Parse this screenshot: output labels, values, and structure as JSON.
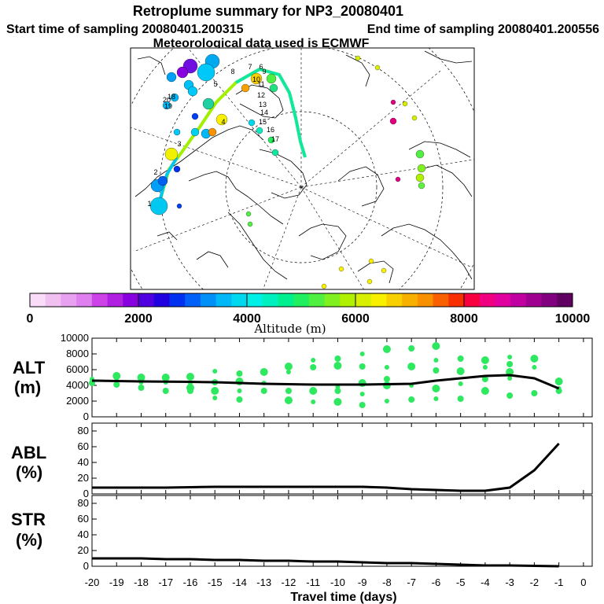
{
  "titles": {
    "main": "Retroplume summary for NP3_20080401",
    "start": "Start time of sampling 20080401.200315",
    "end": "End time of sampling 20080401.200556",
    "met": "Meteorological data used is ECMWF"
  },
  "colorbar": {
    "label": "Altitude (m)",
    "ticks": [
      "0",
      "2000",
      "4000",
      "6000",
      "8000",
      "10000"
    ],
    "colors": [
      "#f8dcf8",
      "#f0c0f0",
      "#e8a0f0",
      "#e080f0",
      "#cc44e8",
      "#b020e0",
      "#8800e0",
      "#5000e0",
      "#2000e0",
      "#0030f0",
      "#0060f8",
      "#0090f8",
      "#00b8f8",
      "#00d8f0",
      "#00f0e8",
      "#00f0c0",
      "#00f090",
      "#20f060",
      "#50f040",
      "#80f020",
      "#b0f000",
      "#d8f000",
      "#f8f000",
      "#f8d000",
      "#f8b000",
      "#f89000",
      "#f86000",
      "#f83000",
      "#f80040",
      "#f00080",
      "#e000a0",
      "#c000a0",
      "#a00090",
      "#800080",
      "#600060"
    ]
  },
  "map": {
    "labels": [
      "1",
      "2",
      "3",
      "4",
      "5",
      "6",
      "7",
      "8",
      "9",
      "10",
      "11",
      "12",
      "13",
      "14",
      "15",
      "16",
      "17",
      "18",
      "19",
      "20"
    ]
  },
  "axes": {
    "alt_label": "ALT",
    "alt_unit": "(m)",
    "abl_label": "ABL",
    "abl_unit": "(%)",
    "str_label": "STR",
    "str_unit": "(%)",
    "xlabel": "Travel time (days)"
  },
  "chart_data": [
    {
      "type": "line",
      "name": "ALT",
      "title": "ALT (m)",
      "xlim": [
        -20,
        0
      ],
      "ylim": [
        0,
        10000
      ],
      "yticks": [
        0,
        2000,
        4000,
        6000,
        8000,
        10000
      ],
      "xticks": [
        -20,
        -19,
        -18,
        -17,
        -16,
        -15,
        -14,
        -13,
        -12,
        -11,
        -10,
        -9,
        -8,
        -7,
        -6,
        -5,
        -4,
        -3,
        -2,
        -1,
        0
      ],
      "x": [
        -20,
        -19,
        -18,
        -17,
        -16,
        -15,
        -14,
        -13,
        -12,
        -11,
        -10,
        -9,
        -8,
        -7,
        -6,
        -5,
        -4,
        -3,
        -2,
        -1
      ],
      "median": [
        4600,
        4550,
        4500,
        4480,
        4450,
        4400,
        4300,
        4200,
        4150,
        4100,
        4100,
        4100,
        4150,
        4200,
        4600,
        4900,
        5200,
        5300,
        4900,
        3600
      ],
      "scatter": [
        {
          "x": -20,
          "y": 4800
        },
        {
          "x": -20,
          "y": 4300
        },
        {
          "x": -19,
          "y": 5200
        },
        {
          "x": -19,
          "y": 4600
        },
        {
          "x": -19,
          "y": 4100
        },
        {
          "x": -18,
          "y": 5000
        },
        {
          "x": -18,
          "y": 4400
        },
        {
          "x": -18,
          "y": 3700
        },
        {
          "x": -17,
          "y": 5000
        },
        {
          "x": -17,
          "y": 4400
        },
        {
          "x": -17,
          "y": 3300
        },
        {
          "x": -16,
          "y": 5100
        },
        {
          "x": -16,
          "y": 4300
        },
        {
          "x": -16,
          "y": 3300
        },
        {
          "x": -16,
          "y": 3700
        },
        {
          "x": -15,
          "y": 5800
        },
        {
          "x": -15,
          "y": 4400
        },
        {
          "x": -15,
          "y": 3300
        },
        {
          "x": -15,
          "y": 2400
        },
        {
          "x": -14,
          "y": 5500
        },
        {
          "x": -14,
          "y": 4500
        },
        {
          "x": -14,
          "y": 3300
        },
        {
          "x": -14,
          "y": 2200
        },
        {
          "x": -13,
          "y": 5700
        },
        {
          "x": -13,
          "y": 4300
        },
        {
          "x": -13,
          "y": 3300
        },
        {
          "x": -12,
          "y": 6400
        },
        {
          "x": -12,
          "y": 5700
        },
        {
          "x": -12,
          "y": 3300
        },
        {
          "x": -12,
          "y": 2100
        },
        {
          "x": -11,
          "y": 7200
        },
        {
          "x": -11,
          "y": 6300
        },
        {
          "x": -11,
          "y": 3300
        },
        {
          "x": -11,
          "y": 1900
        },
        {
          "x": -10,
          "y": 7400
        },
        {
          "x": -10,
          "y": 6500
        },
        {
          "x": -10,
          "y": 3800
        },
        {
          "x": -10,
          "y": 3300
        },
        {
          "x": -10,
          "y": 1900
        },
        {
          "x": -9,
          "y": 8000
        },
        {
          "x": -9,
          "y": 6400
        },
        {
          "x": -9,
          "y": 4300
        },
        {
          "x": -9,
          "y": 2900
        },
        {
          "x": -9,
          "y": 1500
        },
        {
          "x": -8,
          "y": 8600
        },
        {
          "x": -8,
          "y": 6300
        },
        {
          "x": -8,
          "y": 4800
        },
        {
          "x": -8,
          "y": 4000
        },
        {
          "x": -8,
          "y": 2000
        },
        {
          "x": -7,
          "y": 8700
        },
        {
          "x": -7,
          "y": 6400
        },
        {
          "x": -7,
          "y": 4000
        },
        {
          "x": -7,
          "y": 2200
        },
        {
          "x": -6,
          "y": 9000
        },
        {
          "x": -6,
          "y": 7200
        },
        {
          "x": -6,
          "y": 5900
        },
        {
          "x": -6,
          "y": 3600
        },
        {
          "x": -6,
          "y": 2300
        },
        {
          "x": -5,
          "y": 7400
        },
        {
          "x": -5,
          "y": 5800
        },
        {
          "x": -5,
          "y": 4200
        },
        {
          "x": -5,
          "y": 2300
        },
        {
          "x": -4,
          "y": 7200
        },
        {
          "x": -4,
          "y": 6300
        },
        {
          "x": -4,
          "y": 4800
        },
        {
          "x": -4,
          "y": 3300
        },
        {
          "x": -3,
          "y": 7600
        },
        {
          "x": -3,
          "y": 6700
        },
        {
          "x": -3,
          "y": 5700
        },
        {
          "x": -3,
          "y": 4900
        },
        {
          "x": -3,
          "y": 2700
        },
        {
          "x": -2,
          "y": 7400
        },
        {
          "x": -2,
          "y": 6300
        },
        {
          "x": -2,
          "y": 3000
        },
        {
          "x": -1,
          "y": 4500
        },
        {
          "x": -1,
          "y": 3600
        },
        {
          "x": -1,
          "y": 3300
        }
      ]
    },
    {
      "type": "line",
      "name": "ABL",
      "title": "ABL (%)",
      "xlim": [
        -20,
        0
      ],
      "ylim": [
        0,
        90
      ],
      "yticks": [
        0,
        20,
        40,
        60,
        80
      ],
      "x": [
        -20,
        -19,
        -18,
        -17,
        -16,
        -15,
        -14,
        -13,
        -12,
        -11,
        -10,
        -9,
        -8,
        -7,
        -6,
        -5,
        -4,
        -3,
        -2,
        -1
      ],
      "y": [
        8,
        8,
        8,
        8,
        8.5,
        9,
        9,
        9,
        9,
        9,
        9,
        9,
        8,
        6,
        5,
        4,
        4,
        8,
        30,
        64
      ]
    },
    {
      "type": "line",
      "name": "STR",
      "title": "STR (%)",
      "xlim": [
        -20,
        0
      ],
      "ylim": [
        0,
        90
      ],
      "yticks": [
        0,
        20,
        40,
        60,
        80
      ],
      "x": [
        -20,
        -19,
        -18,
        -17,
        -16,
        -15,
        -14,
        -13,
        -12,
        -11,
        -10,
        -9,
        -8,
        -7,
        -6,
        -5,
        -4,
        -3,
        -2,
        -1
      ],
      "y": [
        10,
        10,
        10,
        9,
        9,
        8,
        8,
        7,
        7,
        6,
        6,
        5,
        4,
        4,
        3,
        2,
        1,
        1,
        0.5,
        0
      ]
    }
  ]
}
